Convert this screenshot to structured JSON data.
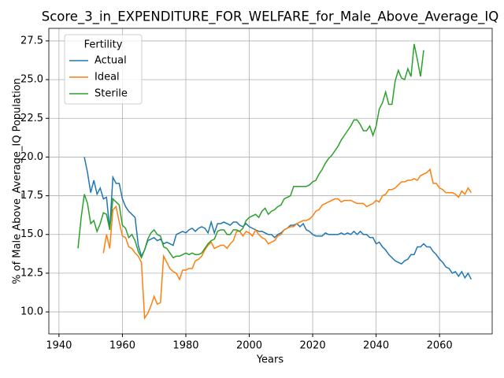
{
  "chart_data": {
    "type": "line",
    "title": "Score_3_in_EXPENDITURE_FOR_WELFARE_for_Male_Above_Average_IQ",
    "xlabel": "Years",
    "ylabel": "% of Male Above_Average_IQ Population",
    "legend_title": "Fertility",
    "legend": "upper left",
    "grid": true,
    "xlim": [
      1936.8,
      2076.6
    ],
    "ylim": [
      8.58,
      28.31
    ],
    "xticks": [
      1940,
      1960,
      1980,
      2000,
      2020,
      2040,
      2060
    ],
    "yticks": [
      {
        "value": 10,
        "label": "10.0"
      },
      12.5,
      {
        "value": 15,
        "label": "15.0"
      },
      17.5,
      {
        "value": 20,
        "label": "20.0"
      },
      22.5,
      {
        "value": 25,
        "label": "25.0"
      },
      27.5
    ],
    "x": [
      1946,
      1947,
      1948,
      1949,
      1950,
      1951,
      1952,
      1953,
      1954,
      1955,
      1956,
      1957,
      1958,
      1959,
      1960,
      1961,
      1962,
      1963,
      1964,
      1965,
      1966,
      1967,
      1968,
      1969,
      1970,
      1971,
      1972,
      1973,
      1974,
      1975,
      1976,
      1977,
      1978,
      1979,
      1980,
      1981,
      1982,
      1983,
      1984,
      1985,
      1986,
      1987,
      1988,
      1989,
      1990,
      1991,
      1992,
      1993,
      1994,
      1995,
      1996,
      1997,
      1998,
      1999,
      2000,
      2001,
      2002,
      2003,
      2004,
      2005,
      2006,
      2007,
      2008,
      2009,
      2010,
      2011,
      2012,
      2013,
      2014,
      2015,
      2016,
      2017,
      2018,
      2019,
      2020,
      2021,
      2022,
      2023,
      2024,
      2025,
      2026,
      2027,
      2028,
      2029,
      2030,
      2031,
      2032,
      2033,
      2034,
      2035,
      2036,
      2037,
      2038,
      2039,
      2040,
      2041,
      2042,
      2043,
      2044,
      2045,
      2046,
      2047,
      2048,
      2049,
      2050,
      2051,
      2052,
      2053,
      2054,
      2055,
      2056,
      2057,
      2058,
      2059,
      2060,
      2061,
      2062,
      2063,
      2064,
      2065,
      2066,
      2067,
      2068,
      2069,
      2070
    ],
    "series": [
      {
        "name": "Actual",
        "color": "#1f77b4",
        "values": [
          null,
          null,
          20.0,
          19.0,
          17.7,
          18.5,
          17.6,
          18.0,
          17.3,
          17.4,
          15.3,
          18.7,
          18.3,
          18.3,
          17.3,
          16.8,
          16.5,
          16.3,
          16.1,
          14.3,
          13.6,
          14.0,
          14.6,
          14.7,
          14.8,
          14.6,
          14.7,
          14.4,
          14.5,
          14.4,
          14.3,
          15.0,
          15.1,
          15.2,
          15.1,
          15.3,
          15.4,
          15.2,
          15.4,
          15.5,
          15.4,
          15.1,
          15.8,
          15.1,
          15.7,
          15.7,
          15.8,
          15.7,
          15.6,
          15.8,
          15.8,
          15.6,
          15.5,
          15.7,
          15.5,
          15.4,
          15.3,
          15.2,
          15.2,
          15.1,
          15.0,
          15.0,
          14.8,
          15.0,
          15.1,
          15.3,
          15.4,
          15.6,
          15.6,
          15.7,
          15.5,
          15.7,
          15.3,
          15.2,
          15.0,
          14.9,
          14.9,
          14.9,
          15.1,
          15.0,
          15.0,
          15.0,
          15.0,
          15.1,
          15.0,
          15.1,
          15.0,
          15.2,
          15.0,
          15.2,
          15.0,
          15.0,
          14.8,
          14.8,
          14.4,
          14.5,
          14.2,
          14.0,
          13.7,
          13.5,
          13.3,
          13.2,
          13.1,
          13.3,
          13.4,
          13.7,
          13.7,
          14.2,
          14.2,
          14.4,
          14.2,
          14.2,
          13.9,
          13.7,
          13.4,
          13.2,
          12.9,
          12.8,
          12.5,
          12.6,
          12.3,
          12.6,
          12.2,
          12.5,
          12.1
        ]
      },
      {
        "name": "Ideal",
        "color": "#ff7f0e",
        "values": [
          null,
          null,
          null,
          null,
          null,
          null,
          null,
          null,
          13.8,
          15.0,
          14.1,
          16.6,
          16.8,
          15.8,
          14.9,
          14.8,
          14.2,
          14.1,
          13.8,
          13.6,
          13.2,
          9.6,
          9.9,
          10.4,
          11.0,
          10.5,
          10.6,
          13.6,
          13.2,
          12.8,
          12.6,
          12.5,
          12.1,
          12.7,
          12.7,
          12.8,
          12.8,
          13.3,
          13.4,
          13.6,
          14.0,
          14.3,
          14.5,
          14.1,
          14.2,
          14.3,
          14.3,
          14.1,
          14.4,
          14.6,
          15.2,
          15.2,
          14.9,
          15.2,
          15.1,
          14.9,
          15.3,
          15.0,
          14.8,
          14.7,
          14.4,
          14.5,
          14.6,
          14.9,
          15.0,
          15.3,
          15.4,
          15.5,
          15.5,
          15.7,
          15.8,
          15.9,
          15.9,
          16.0,
          16.2,
          16.5,
          16.6,
          16.9,
          17.0,
          17.1,
          17.2,
          17.3,
          17.3,
          17.1,
          17.2,
          17.2,
          17.2,
          17.1,
          17.0,
          17.0,
          17.0,
          16.8,
          16.9,
          17.0,
          17.2,
          17.1,
          17.5,
          17.6,
          17.9,
          17.9,
          18.0,
          18.2,
          18.4,
          18.4,
          18.5,
          18.5,
          18.6,
          18.5,
          18.8,
          18.9,
          19.0,
          19.2,
          18.3,
          18.3,
          18.0,
          17.9,
          17.7,
          17.7,
          17.7,
          17.6,
          17.4,
          17.8,
          17.6,
          18.0,
          17.7
        ]
      },
      {
        "name": "Sterile",
        "color": "#2ca02c",
        "values": [
          14.1,
          16.1,
          17.6,
          17.0,
          15.7,
          15.9,
          15.2,
          15.7,
          16.4,
          16.3,
          15.3,
          17.3,
          17.1,
          16.9,
          15.6,
          15.4,
          14.8,
          15.0,
          14.6,
          13.9,
          13.5,
          14.0,
          14.7,
          15.1,
          15.3,
          15.0,
          14.9,
          14.2,
          14.1,
          13.8,
          13.5,
          13.6,
          13.6,
          13.7,
          13.8,
          13.7,
          13.8,
          13.7,
          13.7,
          13.8,
          14.1,
          14.4,
          14.6,
          14.7,
          15.2,
          15.3,
          15.3,
          15.0,
          15.0,
          15.3,
          15.3,
          15.2,
          15.4,
          15.9,
          16.1,
          16.2,
          16.3,
          16.1,
          16.5,
          16.7,
          16.3,
          16.5,
          16.6,
          16.8,
          16.9,
          17.3,
          17.4,
          17.5,
          18.1,
          18.1,
          18.1,
          18.1,
          18.1,
          18.2,
          18.4,
          18.5,
          18.9,
          19.2,
          19.6,
          19.9,
          20.1,
          20.4,
          20.7,
          21.1,
          21.4,
          21.7,
          22.0,
          22.4,
          22.4,
          22.1,
          21.7,
          21.7,
          22.0,
          21.4,
          22.0,
          23.1,
          23.5,
          24.2,
          23.4,
          23.4,
          24.9,
          25.6,
          25.1,
          25.0,
          25.7,
          25.2,
          27.3,
          26.3,
          25.2,
          26.9,
          null,
          null,
          null,
          null,
          null,
          null,
          null,
          null,
          null,
          null,
          null,
          null,
          null,
          null,
          null
        ]
      }
    ]
  }
}
